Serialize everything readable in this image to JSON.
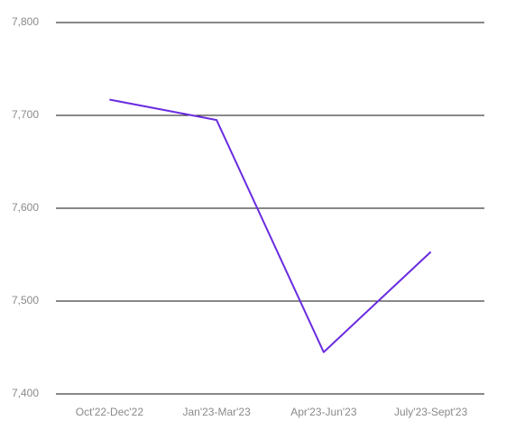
{
  "chart_data": {
    "type": "line",
    "categories": [
      "Oct'22-Dec'22",
      "Jan'23-Mar'23",
      "Apr'23-Jun'23",
      "July'23-Sept'23"
    ],
    "series": [
      {
        "color": "#6a2be0",
        "values": [
          7717,
          7695,
          7445,
          7553
        ]
      }
    ],
    "ylim": [
      7400,
      7800
    ],
    "yticks": [
      {
        "value": 7400,
        "label": "7,400"
      },
      {
        "value": 7500,
        "label": "7,500"
      },
      {
        "value": 7600,
        "label": "7,600"
      },
      {
        "value": 7700,
        "label": "7,700"
      },
      {
        "value": 7800,
        "label": "7,800"
      }
    ],
    "grid": true
  }
}
